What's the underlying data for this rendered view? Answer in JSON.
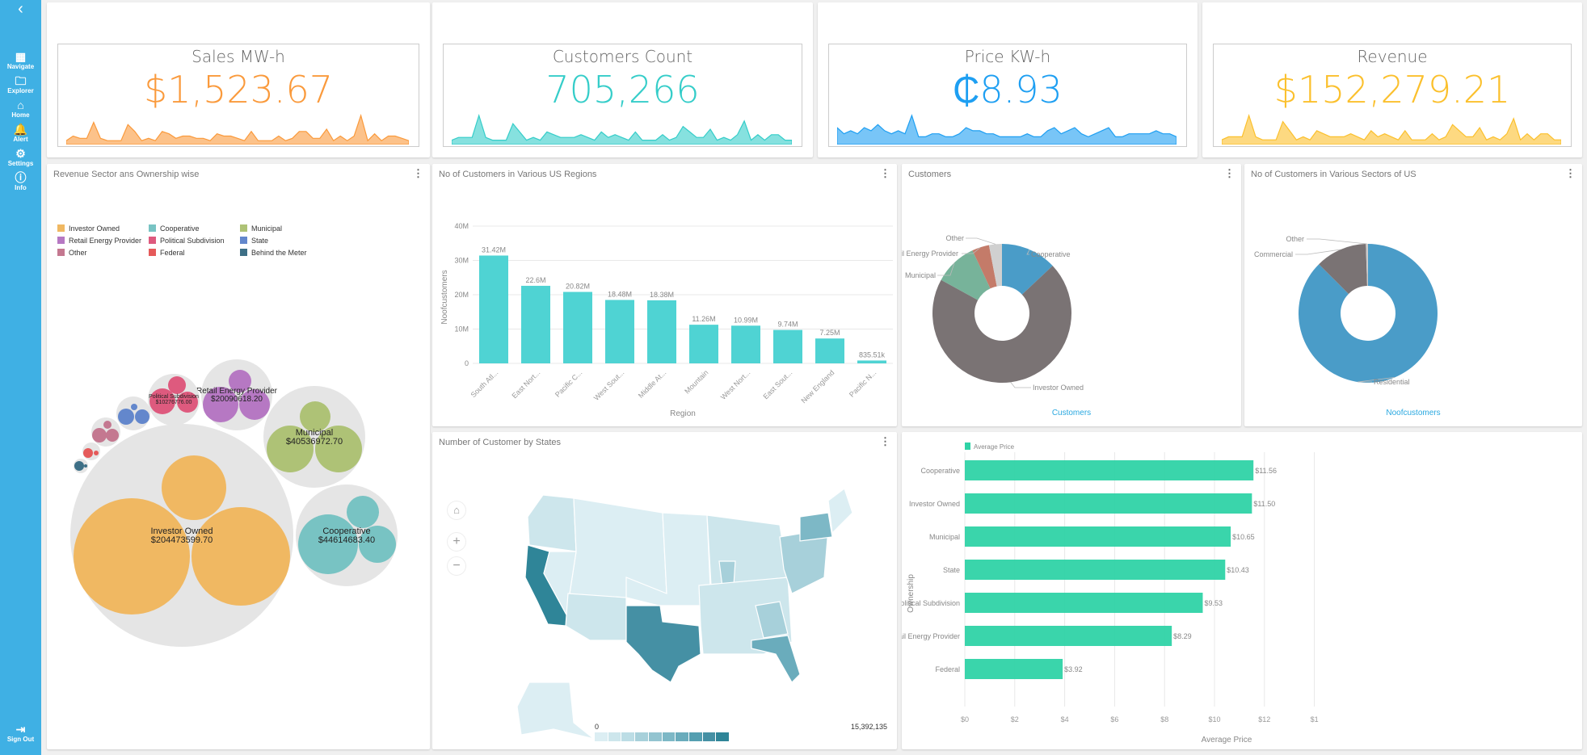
{
  "sidebar": {
    "back_icon": "chevron-left-icon",
    "items": [
      {
        "label": "Navigate",
        "icon": "grid-icon"
      },
      {
        "label": "Explorer",
        "icon": "folder-icon"
      },
      {
        "label": "Home",
        "icon": "home-icon"
      },
      {
        "label": "Alert",
        "icon": "bell-icon"
      },
      {
        "label": "Settings",
        "icon": "gear-icon"
      },
      {
        "label": "Info",
        "icon": "info-icon"
      }
    ],
    "signout": {
      "label": "Sign Out",
      "icon": "sign-out-icon"
    },
    "color": "#3fb0e4"
  },
  "kpis": [
    {
      "title": "Sales MW-h",
      "value": "$1,523.67",
      "color": "#fa9a3c",
      "spark": [
        1,
        3,
        2,
        2,
        9,
        2,
        1,
        1,
        1,
        8,
        5,
        1,
        2,
        1,
        5,
        4,
        2,
        3,
        3,
        2,
        2,
        1,
        4,
        3,
        3,
        2,
        1,
        5,
        1,
        1,
        1,
        3,
        1,
        2,
        5,
        5,
        2,
        2,
        6,
        1,
        3,
        1,
        3,
        12,
        1,
        4,
        1,
        3,
        3,
        2,
        1
      ]
    },
    {
      "title": "Customers Count",
      "value": "705,266",
      "color": "#35cdc9",
      "spark": [
        1,
        2,
        2,
        2,
        10,
        2,
        1,
        1,
        1,
        7,
        4,
        1,
        2,
        1,
        4,
        3,
        2,
        2,
        2,
        3,
        2,
        1,
        4,
        2,
        3,
        2,
        1,
        4,
        1,
        1,
        1,
        3,
        1,
        2,
        6,
        4,
        2,
        2,
        5,
        1,
        2,
        1,
        3,
        8,
        1,
        3,
        1,
        3,
        3,
        1,
        1
      ]
    },
    {
      "title": "Price KW-h",
      "value": "₵8.93",
      "color": "#1e9ff2",
      "spark": [
        5,
        3,
        4,
        3,
        5,
        4,
        6,
        4,
        3,
        4,
        3,
        9,
        2,
        2,
        3,
        3,
        2,
        2,
        3,
        5,
        4,
        4,
        3,
        3,
        2,
        2,
        2,
        2,
        3,
        2,
        2,
        4,
        5,
        3,
        4,
        5,
        3,
        2,
        3,
        4,
        5,
        2,
        2,
        3,
        3,
        3,
        3,
        4,
        3,
        3,
        2
      ]
    },
    {
      "title": "Revenue",
      "value": "$152,279.21",
      "color": "#fbc02d",
      "spark": [
        1,
        2,
        2,
        2,
        9,
        2,
        1,
        1,
        1,
        7,
        4,
        1,
        2,
        1,
        4,
        3,
        2,
        2,
        2,
        3,
        2,
        1,
        4,
        2,
        3,
        2,
        1,
        4,
        1,
        1,
        1,
        3,
        1,
        2,
        6,
        4,
        2,
        2,
        5,
        1,
        2,
        1,
        3,
        8,
        1,
        3,
        1,
        3,
        3,
        1,
        1
      ]
    }
  ],
  "panels": {
    "bubble": {
      "title": "Revenue Sector ans Ownership wise"
    },
    "regions": {
      "title": "No of Customers in Various US Regions"
    },
    "customers": {
      "title": "Customers",
      "footer": "Customers"
    },
    "sectors": {
      "title": "No of Customers in Various Sectors of US",
      "footer": "Noofcustomers"
    },
    "map": {
      "title": "Number of Customer by States",
      "legend_min": "0",
      "legend_max": "15,392,135"
    },
    "price": {
      "title": ""
    }
  },
  "chart_data": [
    {
      "type": "bubble",
      "legend": [
        {
          "name": "Investor Owned",
          "color": "#f0b862"
        },
        {
          "name": "Cooperative",
          "color": "#78c3c3"
        },
        {
          "name": "Municipal",
          "color": "#aec276"
        },
        {
          "name": "Retail Energy Provider",
          "color": "#b678c3"
        },
        {
          "name": "Political Subdivision",
          "color": "#de5a7e"
        },
        {
          "name": "State",
          "color": "#6387cc"
        },
        {
          "name": "Other",
          "color": "#c47890"
        },
        {
          "name": "Federal",
          "color": "#e55a5a"
        },
        {
          "name": "Behind the Meter",
          "color": "#3d6f86"
        }
      ],
      "labels": [
        {
          "name": "Investor Owned",
          "value": "$204473599.70"
        },
        {
          "name": "Cooperative",
          "value": "$44614683.40"
        },
        {
          "name": "Municipal",
          "value": "$40536972.70"
        },
        {
          "name": "Retail Energy Provider",
          "value": "$20090618.20"
        },
        {
          "name": "Political Subdivision",
          "value": "$10276776.00"
        }
      ]
    },
    {
      "type": "bar",
      "categories": [
        "South Atl...",
        "East Nort...",
        "Pacific C...",
        "West Sout...",
        "Middle At...",
        "Mountain",
        "West Nort...",
        "East Sout...",
        "New England",
        "Pacific N..."
      ],
      "values": [
        31420000,
        22600000,
        20820000,
        18480000,
        18380000,
        11260000,
        10990000,
        9740000,
        7250000,
        835510
      ],
      "data_labels": [
        "31.42M",
        "22.6M",
        "20.82M",
        "18.48M",
        "18.38M",
        "11.26M",
        "10.99M",
        "9.74M",
        "7.25M",
        "835.51k"
      ],
      "yticks": [
        "0",
        "10M",
        "20M",
        "30M",
        "40M"
      ],
      "ylim": [
        0,
        40000000
      ],
      "xlabel": "Region",
      "ylabel": "Noofcustomers",
      "color": "#4fd3d3",
      "grid": true
    },
    {
      "type": "pie",
      "donut": true,
      "slices": [
        {
          "name": "Cooperative",
          "value": 13,
          "color": "#4a9cc8"
        },
        {
          "name": "Investor Owned",
          "value": 70,
          "color": "#7a7374"
        },
        {
          "name": "Municipal",
          "value": 10,
          "color": "#77b39a"
        },
        {
          "name": "Retail Energy Provider",
          "value": 4,
          "color": "#c47b69"
        },
        {
          "name": "Other",
          "value": 3,
          "color": "#d0d0d0"
        }
      ]
    },
    {
      "type": "pie",
      "donut": true,
      "slices": [
        {
          "name": "Residential",
          "value": 87.5,
          "color": "#4a9cc8"
        },
        {
          "name": "Commercial",
          "value": 12,
          "color": "#7a7374"
        },
        {
          "name": "Other",
          "value": 0.5,
          "color": "#cccccc"
        }
      ]
    },
    {
      "type": "bar",
      "orientation": "horizontal",
      "legend": "Average Price",
      "categories": [
        "Cooperative",
        "Investor Owned",
        "Municipal",
        "State",
        "Political Subdivision",
        "Retail Energy Provider",
        "Federal"
      ],
      "values": [
        11.56,
        11.5,
        10.65,
        10.43,
        9.53,
        8.29,
        3.92
      ],
      "data_labels": [
        "$11.56",
        "$11.50",
        "$10.65",
        "$10.43",
        "$9.53",
        "$8.29",
        "$3.92"
      ],
      "xticks": [
        "$0",
        "$2",
        "$4",
        "$6",
        "$8",
        "$10",
        "$12",
        "$1"
      ],
      "xlim": [
        0,
        14
      ],
      "xlabel": "Average Price",
      "ylabel": "Ownership",
      "color": "#2fd3a6",
      "grid": true
    }
  ]
}
